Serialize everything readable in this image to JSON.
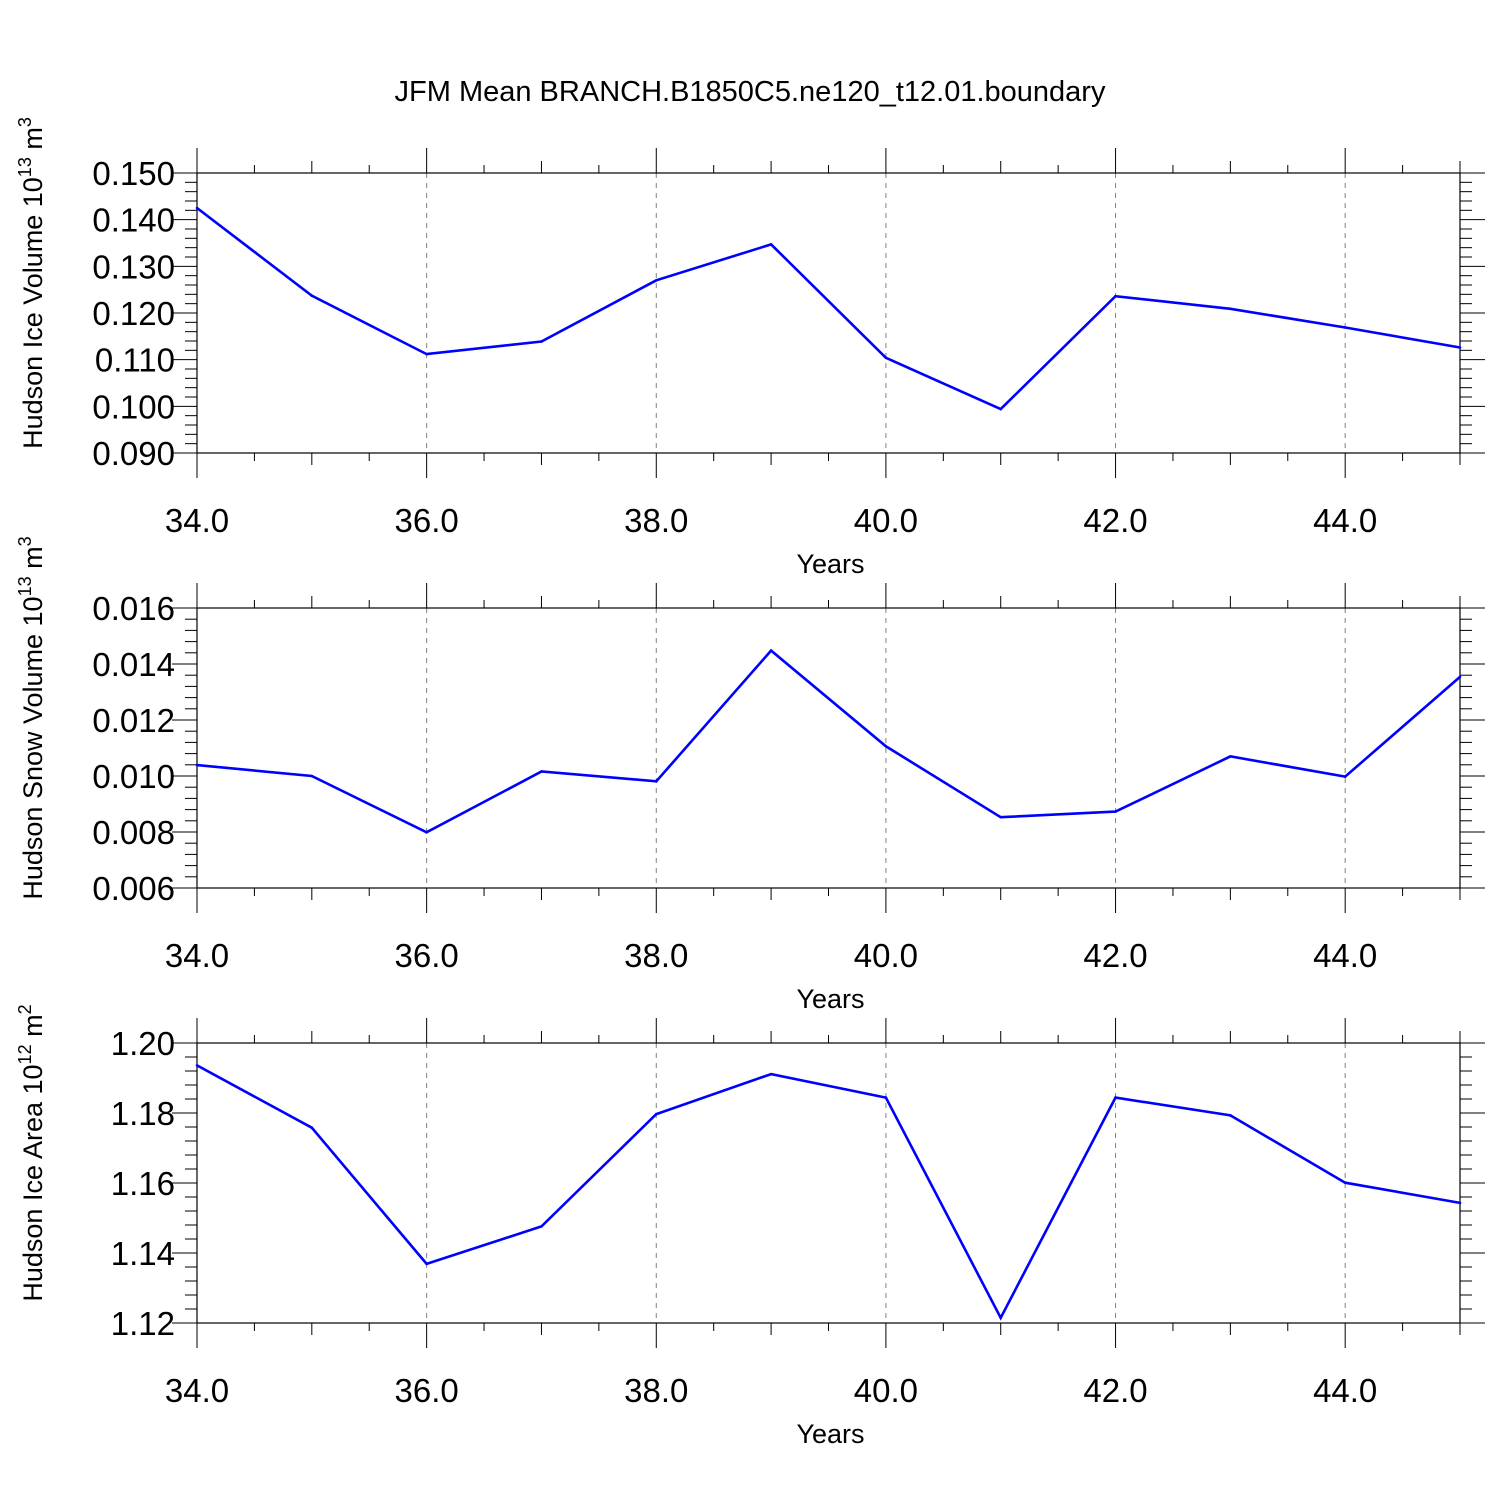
{
  "title": "JFM Mean BRANCH.B1850C5.ne120_t12.01.boundary",
  "colors": {
    "line": "#0000ff",
    "axis": "#000000",
    "grid": "#808080",
    "background": "#ffffff"
  },
  "chart_data": [
    {
      "type": "line",
      "ylabel": {
        "text": "Hudson Ice Volume 10",
        "exp": "13",
        "unit": " m",
        "unit_exp": "3"
      },
      "xlabel": "Years",
      "xlim": [
        34,
        45
      ],
      "ylim": [
        0.09,
        0.15
      ],
      "x_ticks": [
        34,
        36,
        38,
        40,
        42,
        44
      ],
      "x_tick_labels": [
        "34.0",
        "36.0",
        "38.0",
        "40.0",
        "42.0",
        "44.0"
      ],
      "y_ticks": [
        0.09,
        0.1,
        0.11,
        0.12,
        0.13,
        0.14,
        0.15
      ],
      "y_tick_labels": [
        "0.090",
        "0.100",
        "0.110",
        "0.120",
        "0.130",
        "0.140",
        "0.150"
      ],
      "grid": "vertical dashed at major x ticks",
      "x": [
        34,
        35,
        36,
        37,
        38,
        39,
        40,
        41,
        42,
        43,
        44,
        45
      ],
      "y": [
        0.1425,
        0.1237,
        0.1112,
        0.1139,
        0.127,
        0.1347,
        0.1104,
        0.0994,
        0.1236,
        0.1209,
        0.1169,
        0.1126
      ]
    },
    {
      "type": "line",
      "ylabel": {
        "text": "Hudson Snow Volume 10",
        "exp": "13",
        "unit": " m",
        "unit_exp": "3"
      },
      "xlabel": "Years",
      "xlim": [
        34,
        45
      ],
      "ylim": [
        0.006,
        0.016
      ],
      "x_ticks": [
        34,
        36,
        38,
        40,
        42,
        44
      ],
      "x_tick_labels": [
        "34.0",
        "36.0",
        "38.0",
        "40.0",
        "42.0",
        "44.0"
      ],
      "y_ticks": [
        0.006,
        0.008,
        0.01,
        0.012,
        0.014,
        0.016
      ],
      "y_tick_labels": [
        "0.006",
        "0.008",
        "0.010",
        "0.012",
        "0.014",
        "0.016"
      ],
      "grid": "vertical dashed at major x ticks",
      "x": [
        34,
        35,
        36,
        37,
        38,
        39,
        40,
        41,
        42,
        43,
        44,
        45
      ],
      "y": [
        0.01039,
        0.01,
        0.00799,
        0.01016,
        0.00981,
        0.01448,
        0.01106,
        0.00853,
        0.00873,
        0.0107,
        0.00998,
        0.01354
      ]
    },
    {
      "type": "line",
      "ylabel": {
        "text": "Hudson Ice Area 10",
        "exp": "12",
        "unit": " m",
        "unit_exp": "2"
      },
      "xlabel": "Years",
      "xlim": [
        34,
        45
      ],
      "ylim": [
        1.12,
        1.2
      ],
      "x_ticks": [
        34,
        36,
        38,
        40,
        42,
        44
      ],
      "x_tick_labels": [
        "34.0",
        "36.0",
        "38.0",
        "40.0",
        "42.0",
        "44.0"
      ],
      "y_ticks": [
        1.12,
        1.14,
        1.16,
        1.18,
        1.2
      ],
      "y_tick_labels": [
        "1.12",
        "1.14",
        "1.16",
        "1.18",
        "1.20"
      ],
      "grid": "vertical dashed at major x ticks",
      "x": [
        34,
        35,
        36,
        37,
        38,
        39,
        40,
        41,
        42,
        43,
        44,
        45
      ],
      "y": [
        1.1936,
        1.1758,
        1.1369,
        1.1476,
        1.1797,
        1.1911,
        1.1844,
        1.1215,
        1.1844,
        1.1793,
        1.1601,
        1.1543
      ]
    }
  ]
}
